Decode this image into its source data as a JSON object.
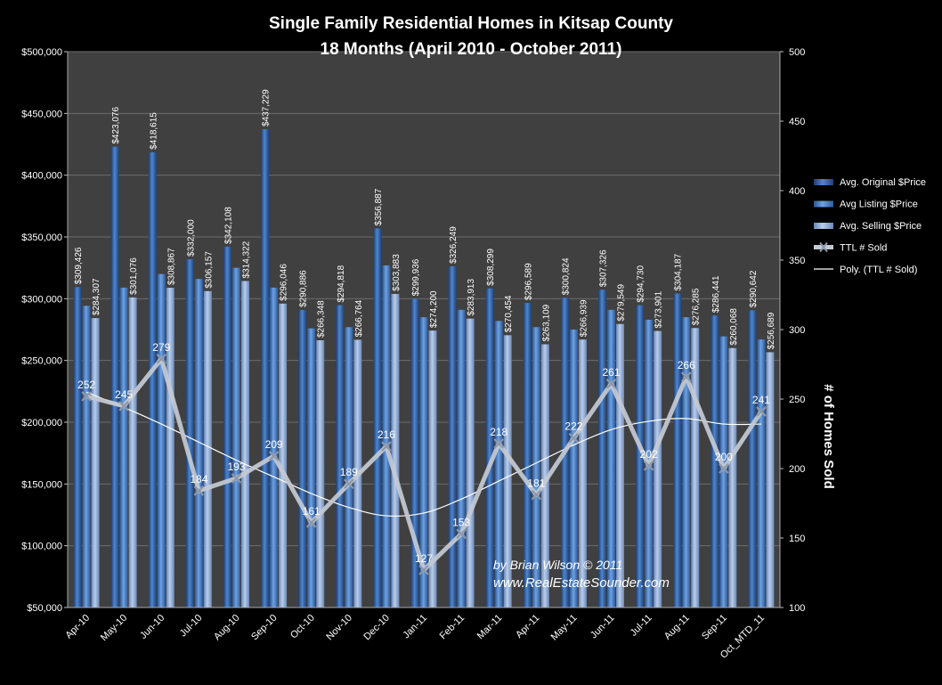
{
  "chart_data": {
    "type": "bar",
    "title": "Single Family Residential Homes in Kitsap County",
    "subtitle": "18 Months (April  2010 - October 2011)",
    "y2label": "# of Homes Sold",
    "ylim": [
      50000,
      500000
    ],
    "y2lim": [
      100,
      500
    ],
    "yticks": [
      "$50,000",
      "$100,000",
      "$150,000",
      "$200,000",
      "$250,000",
      "$300,000",
      "$350,000",
      "$400,000",
      "$450,000",
      "$500,000"
    ],
    "y2ticks": [
      "100",
      "150",
      "200",
      "250",
      "300",
      "350",
      "400",
      "450",
      "500"
    ],
    "categories": [
      "Apr-10",
      "May-10",
      "Jun-10",
      "Jul-10",
      "Aug-10",
      "Sep-10",
      "Oct-10",
      "Nov-10",
      "Dec-10",
      "Jan-11",
      "Feb-11",
      "Mar-11",
      "Apr-11",
      "May-11",
      "Jun-11",
      "Jul-11",
      "Aug-11",
      "Sep-11",
      "Oct_MTD_11"
    ],
    "grid": true,
    "legend_position": "right",
    "series": [
      {
        "name": "Avg. Original $Price",
        "type": "bar",
        "color": "#2f5f9e",
        "values": [
          309426,
          423076,
          418615,
          332000,
          342108,
          437229,
          290886,
          294818,
          356887,
          299936,
          326249,
          308299,
          296589,
          300824,
          307326,
          294730,
          304187,
          286441,
          290642
        ],
        "labels": [
          "$309,426",
          "$423,076",
          "$418,615",
          "$332,000",
          "$342,108",
          "$437,229",
          "$290,886",
          "$294,818",
          "$356,887",
          "$299,936",
          "$326,249",
          "$308,299",
          "$296,589",
          "$300,824",
          "$307,326",
          "$294,730",
          "$304,187",
          "$286,441",
          "$290,642"
        ]
      },
      {
        "name": "Avg Listing $Price",
        "type": "bar",
        "color": "#4a82c8",
        "values": [
          294307,
          309000,
          320000,
          316000,
          325000,
          309000,
          276000,
          277000,
          327000,
          285000,
          291000,
          282000,
          277000,
          275000,
          291000,
          283000,
          285000,
          269500,
          267000
        ],
        "labels": []
      },
      {
        "name": "Avg. Selling $Price",
        "type": "bar",
        "color": "#8aa8d6",
        "values": [
          284307,
          301076,
          308867,
          306157,
          314322,
          296046,
          266348,
          266764,
          303883,
          274200,
          283913,
          270454,
          263109,
          266939,
          279549,
          273901,
          276285,
          260068,
          256689
        ],
        "labels": [
          "$284,307",
          "$301,076",
          "$308,867",
          "$306,157",
          "$314,322",
          "$296,046",
          "$266,348",
          "$266,764",
          "$303,883",
          "$274,200",
          "$283,913",
          "$270,454",
          "$263,109",
          "$266,939",
          "$279,549",
          "$273,901",
          "$276,285",
          "$260,068",
          "$256,689"
        ]
      },
      {
        "name": "TTL # Sold",
        "type": "line",
        "axis": "right",
        "color": "#c4cad4",
        "values": [
          252,
          245,
          279,
          184,
          193,
          209,
          161,
          189,
          216,
          127,
          153,
          218,
          181,
          222,
          261,
          202,
          266,
          200,
          241
        ],
        "labels": [
          "252",
          "245",
          "279",
          "184",
          "193",
          "209",
          "161",
          "189",
          "216",
          "127",
          "153",
          "218",
          "181",
          "222",
          "261",
          "202",
          "266",
          "200",
          "241"
        ]
      },
      {
        "name": "Poly. (TTL # Sold)",
        "type": "trendline",
        "axis": "right",
        "color": "#ffffff",
        "values": [
          255,
          244,
          232,
          219,
          206,
          194,
          182,
          172,
          166,
          168,
          178,
          191,
          204,
          217,
          228,
          234,
          236,
          232,
          232
        ]
      }
    ],
    "annotations": [
      "by Brian Wilson  © 2011",
      "www.RealEstateSounder.com"
    ]
  }
}
